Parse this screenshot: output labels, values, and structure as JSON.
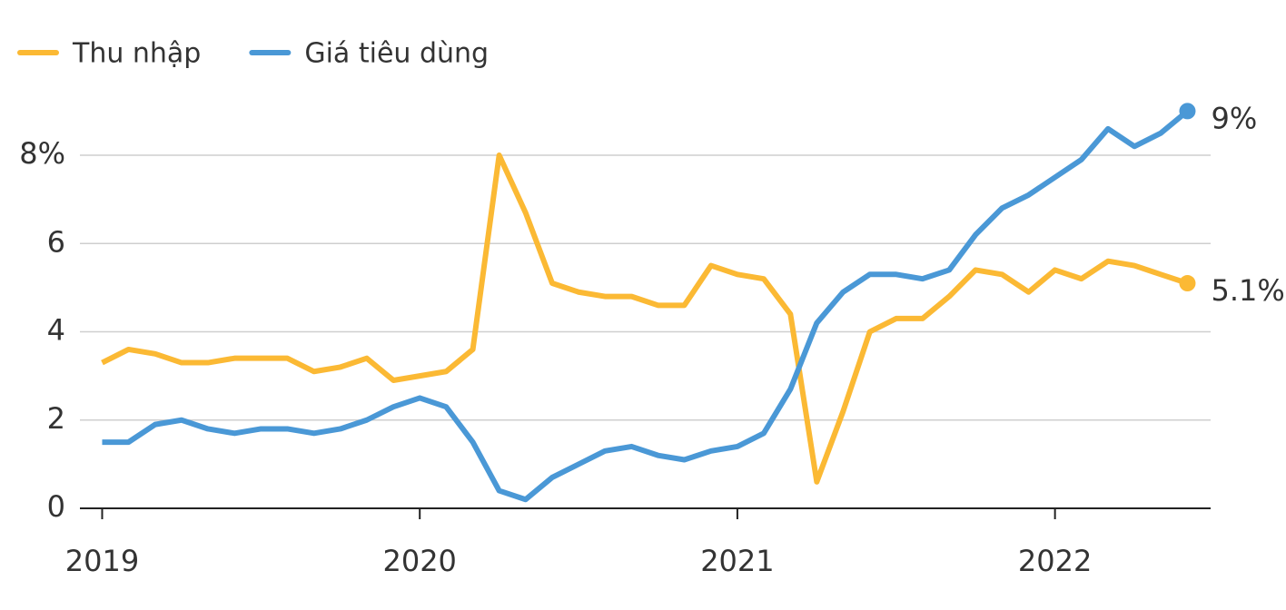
{
  "chart_data": {
    "type": "line",
    "x": [
      2019,
      2019.083,
      2019.167,
      2019.25,
      2019.333,
      2019.417,
      2019.5,
      2019.583,
      2019.667,
      2019.75,
      2019.833,
      2019.917,
      2020,
      2020.083,
      2020.167,
      2020.25,
      2020.333,
      2020.417,
      2020.5,
      2020.583,
      2020.667,
      2020.75,
      2020.833,
      2020.917,
      2021,
      2021.083,
      2021.167,
      2021.25,
      2021.333,
      2021.417,
      2021.5,
      2021.583,
      2021.667,
      2021.75,
      2021.833,
      2021.917,
      2022,
      2022.083,
      2022.167,
      2022.25,
      2022.333,
      2022.417
    ],
    "series": [
      {
        "name": "Thu nhập",
        "color": "#fbb934",
        "values": [
          3.3,
          3.6,
          3.5,
          3.3,
          3.3,
          3.4,
          3.4,
          3.4,
          3.1,
          3.2,
          3.4,
          2.9,
          3.0,
          3.1,
          3.6,
          8.0,
          6.7,
          5.1,
          4.9,
          4.8,
          4.8,
          4.6,
          4.6,
          5.5,
          5.3,
          5.2,
          4.4,
          0.6,
          2.2,
          4.0,
          4.3,
          4.3,
          4.8,
          5.4,
          5.3,
          4.9,
          5.4,
          5.2,
          5.6,
          5.5,
          5.3,
          5.1
        ],
        "value_labels": [
          null,
          null,
          null,
          null,
          null,
          null,
          null,
          null,
          null,
          null,
          null,
          null,
          null,
          null,
          null,
          null,
          null,
          null,
          null,
          null,
          null,
          null,
          null,
          null,
          null,
          null,
          null,
          null,
          null,
          null,
          null,
          null,
          null,
          null,
          null,
          null,
          null,
          null,
          null,
          null,
          null,
          "5.1%"
        ]
      },
      {
        "name": "Giá tiêu dùng",
        "color": "#4a98d6",
        "values": [
          1.5,
          1.5,
          1.9,
          2.0,
          1.8,
          1.7,
          1.8,
          1.8,
          1.7,
          1.8,
          2.0,
          2.3,
          2.5,
          2.3,
          1.5,
          0.4,
          0.2,
          0.7,
          1.0,
          1.3,
          1.4,
          1.2,
          1.1,
          1.3,
          1.4,
          1.7,
          2.7,
          4.2,
          4.9,
          5.3,
          5.3,
          5.2,
          5.4,
          6.2,
          6.8,
          7.1,
          7.5,
          7.9,
          8.6,
          8.2,
          8.5,
          9.0
        ],
        "value_labels": [
          null,
          null,
          null,
          null,
          null,
          null,
          null,
          null,
          null,
          null,
          null,
          null,
          null,
          null,
          null,
          null,
          null,
          null,
          null,
          null,
          null,
          null,
          null,
          null,
          null,
          null,
          null,
          null,
          null,
          null,
          null,
          null,
          null,
          null,
          null,
          null,
          null,
          null,
          null,
          null,
          null,
          "9%"
        ]
      }
    ],
    "xlim": [
      2018.93,
      2022.49
    ],
    "xticks": [
      2019,
      2020,
      2021,
      2022
    ],
    "ylim": [
      0,
      9.2
    ],
    "yticks": [
      0,
      2,
      4,
      6,
      {
        "value": 8,
        "label": "8%"
      }
    ],
    "grid": true
  }
}
